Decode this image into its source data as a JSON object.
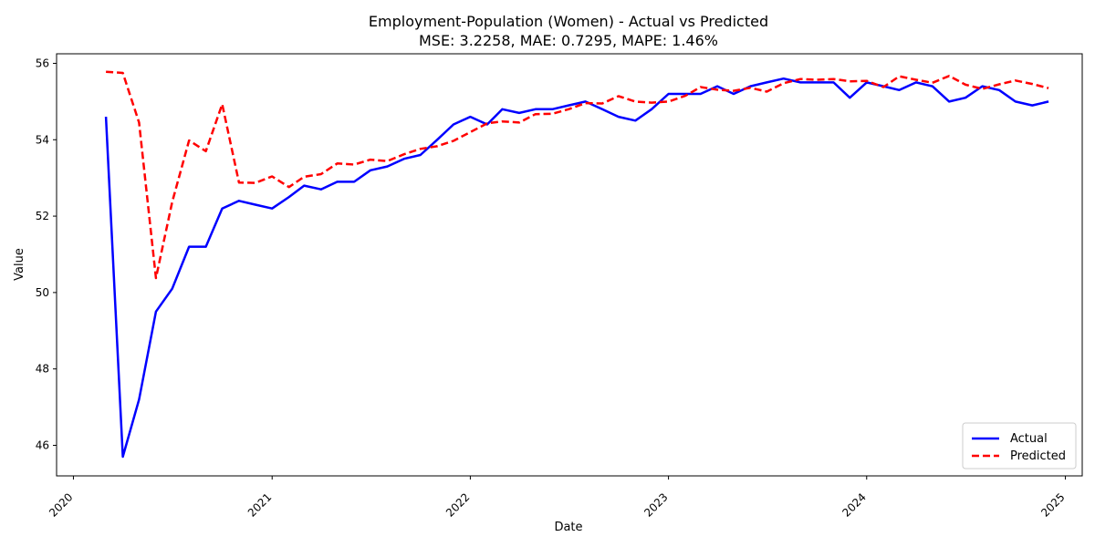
{
  "chart_data": {
    "type": "line",
    "title": "Employment-Population (Women) - Actual vs Predicted",
    "subtitle": "MSE: 3.2258, MAE: 0.7295, MAPE: 1.46%",
    "xlabel": "Date",
    "ylabel": "Value",
    "xlim": [
      "2019-12-01",
      "2025-02-01"
    ],
    "ylim": [
      45.2,
      56.25
    ],
    "x_ticks": [
      "2020-01-01",
      "2021-01-01",
      "2022-01-01",
      "2023-01-01",
      "2024-01-01",
      "2025-01-01"
    ],
    "x_tick_labels": [
      "2020",
      "2021",
      "2022",
      "2023",
      "2024",
      "2025"
    ],
    "y_ticks": [
      46,
      48,
      50,
      52,
      54,
      56
    ],
    "y_tick_labels": [
      "46",
      "48",
      "50",
      "52",
      "54",
      "56"
    ],
    "grid": false,
    "legend_position": "lower-right",
    "x": [
      "2020-03",
      "2020-04",
      "2020-05",
      "2020-06",
      "2020-07",
      "2020-08",
      "2020-09",
      "2020-10",
      "2020-11",
      "2020-12",
      "2021-01",
      "2021-02",
      "2021-03",
      "2021-04",
      "2021-05",
      "2021-06",
      "2021-07",
      "2021-08",
      "2021-09",
      "2021-10",
      "2021-11",
      "2021-12",
      "2022-01",
      "2022-02",
      "2022-03",
      "2022-04",
      "2022-05",
      "2022-06",
      "2022-07",
      "2022-08",
      "2022-09",
      "2022-10",
      "2022-11",
      "2022-12",
      "2023-01",
      "2023-02",
      "2023-03",
      "2023-04",
      "2023-05",
      "2023-06",
      "2023-07",
      "2023-08",
      "2023-09",
      "2023-10",
      "2023-11",
      "2023-12",
      "2024-01",
      "2024-02",
      "2024-03",
      "2024-04",
      "2024-05",
      "2024-06",
      "2024-07",
      "2024-08",
      "2024-09",
      "2024-10",
      "2024-11",
      "2024-12"
    ],
    "series": [
      {
        "name": "Actual",
        "color": "#0000ff",
        "style": "solid",
        "values": [
          54.6,
          45.7,
          47.2,
          49.5,
          50.1,
          51.2,
          51.2,
          52.2,
          52.4,
          52.3,
          52.2,
          52.5,
          52.8,
          52.7,
          52.9,
          52.9,
          53.2,
          53.3,
          53.5,
          53.6,
          54.0,
          54.4,
          54.6,
          54.4,
          54.8,
          54.7,
          54.8,
          54.8,
          54.9,
          55.0,
          54.8,
          54.6,
          54.5,
          54.8,
          55.2,
          55.2,
          55.2,
          55.4,
          55.2,
          55.4,
          55.5,
          55.6,
          55.5,
          55.5,
          55.5,
          55.1,
          55.5,
          55.4,
          55.3,
          55.5,
          55.4,
          55.0,
          55.1,
          55.4,
          55.3,
          55.0,
          54.9,
          55.0
        ]
      },
      {
        "name": "Predicted",
        "color": "#ff0000",
        "style": "dashed",
        "values": [
          55.78,
          55.75,
          54.45,
          50.38,
          52.37,
          53.98,
          53.7,
          54.93,
          52.88,
          52.87,
          53.04,
          52.76,
          53.03,
          53.1,
          53.38,
          53.35,
          53.48,
          53.44,
          53.62,
          53.76,
          53.83,
          53.97,
          54.2,
          54.43,
          54.48,
          54.45,
          54.67,
          54.68,
          54.8,
          54.96,
          54.95,
          55.14,
          55.0,
          54.97,
          55.0,
          55.15,
          55.38,
          55.31,
          55.28,
          55.36,
          55.26,
          55.48,
          55.59,
          55.57,
          55.59,
          55.53,
          55.54,
          55.38,
          55.66,
          55.57,
          55.49,
          55.67,
          55.44,
          55.33,
          55.45,
          55.55,
          55.46,
          55.35
        ]
      }
    ]
  }
}
